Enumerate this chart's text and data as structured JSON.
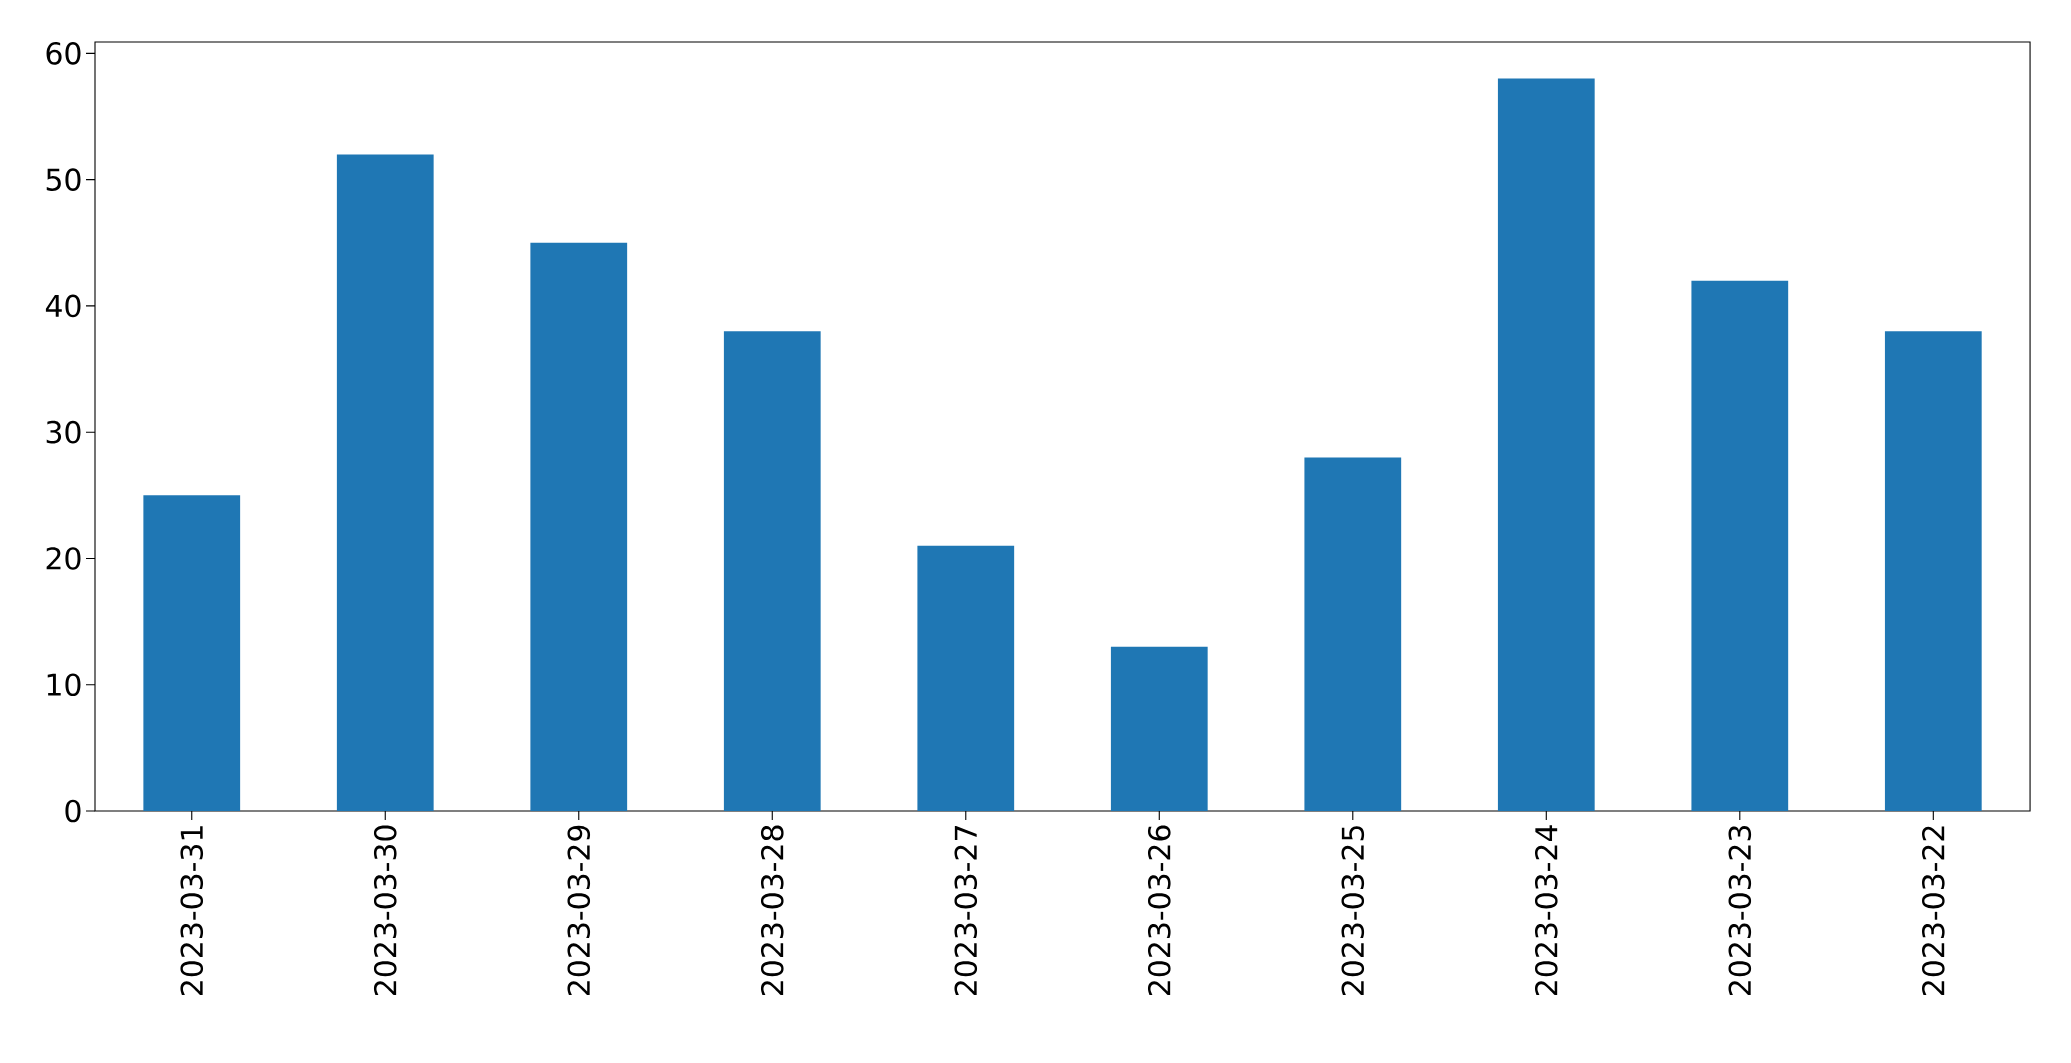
{
  "chart_data": {
    "type": "bar",
    "categories": [
      "2023-03-31",
      "2023-03-30",
      "2023-03-29",
      "2023-03-28",
      "2023-03-27",
      "2023-03-26",
      "2023-03-25",
      "2023-03-24",
      "2023-03-23",
      "2023-03-22"
    ],
    "values": [
      25,
      52,
      45,
      38,
      21,
      13,
      28,
      58,
      42,
      38
    ],
    "color": "#1f77b4",
    "ylim": [
      0,
      60.9
    ],
    "yticks": [
      0,
      10,
      20,
      30,
      40,
      50,
      60
    ],
    "grid": false
  }
}
